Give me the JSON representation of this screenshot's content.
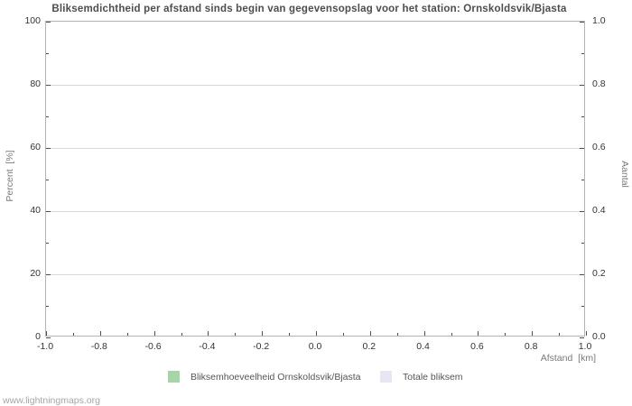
{
  "page": {
    "title": "Bliksemdichtheid per afstand sinds begin van gegevensopslag voor het station: Ornskoldsvik/Bjasta",
    "watermark": "www.lightningmaps.org"
  },
  "chart_data": {
    "type": "bar",
    "title": "Bliksemdichtheid per afstand sinds begin van gegevensopslag voor het station: Ornskoldsvik/Bjasta",
    "xlabel": "Afstand  [km]",
    "ylabel_left": "Percent  [%]",
    "ylabel_right": "Aantal",
    "xlim": [
      -1.0,
      1.0
    ],
    "ylim_left": [
      0,
      100
    ],
    "ylim_right": [
      0.0,
      1.0
    ],
    "x_tick_values": [
      -1.0,
      -0.8,
      -0.6,
      -0.4,
      -0.2,
      0.0,
      0.2,
      0.4,
      0.6,
      0.8,
      1.0
    ],
    "x_tick_labels": [
      "-1.0",
      "-0.8",
      "-0.6",
      "-0.4",
      "-0.2",
      "0.0",
      "0.2",
      "0.4",
      "0.6",
      "0.8",
      "1.0"
    ],
    "y_left_tick_values": [
      0,
      20,
      40,
      60,
      80,
      100
    ],
    "y_left_tick_labels": [
      "0",
      "20",
      "40",
      "60",
      "80",
      "100"
    ],
    "y_right_tick_values": [
      0.0,
      0.2,
      0.4,
      0.6,
      0.8,
      1.0
    ],
    "y_right_tick_labels": [
      "0.0",
      "0.2",
      "0.4",
      "0.6",
      "0.8",
      "1.0"
    ],
    "grid": "horizontal-only",
    "legend_position": "bottom",
    "no_data_rendered": true,
    "series": [
      {
        "name": "Bliksemhoeveelheid Ornskoldsvik/Bjasta",
        "type": "bar",
        "color": "#a8d5a8",
        "x": [],
        "values": []
      },
      {
        "name": "Totale bliksem",
        "type": "bar",
        "color": "#e6e6f7",
        "x": [],
        "values": []
      }
    ]
  },
  "legend": {
    "items": [
      {
        "label": "Bliksemhoeveelheid Ornskoldsvik/Bjasta",
        "color": "#a8d5a8"
      },
      {
        "label": "Totale bliksem",
        "color": "#e6e6f7"
      }
    ]
  },
  "colors": {
    "background": "#ffffff",
    "title_text": "#4d4d4d",
    "tick_label_text": "#333333",
    "axis_name_text": "#7a7a7a",
    "gridline": "#d8d8d8",
    "plot_border": "#b3b3b3",
    "legend_text": "#555555",
    "watermark_text": "#a6a6a6"
  }
}
